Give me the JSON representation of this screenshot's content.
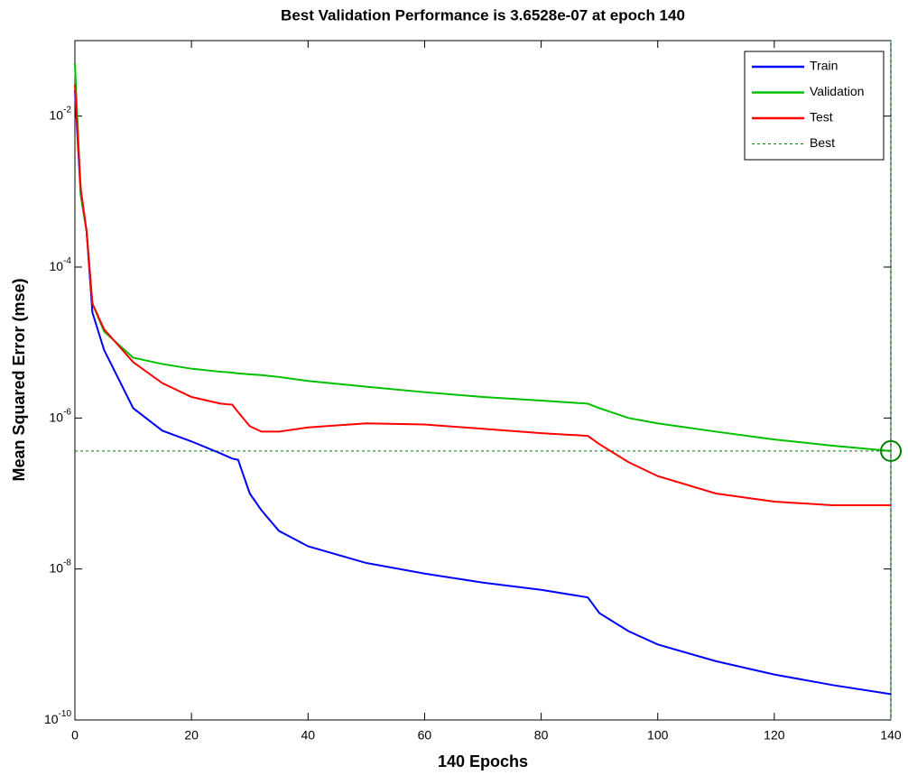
{
  "chart_data": {
    "type": "line",
    "title": "Best Validation Performance is 3.6528e-07 at epoch 140",
    "x_label": "140 Epochs",
    "y_label": "Mean Squared Error  (mse)",
    "log_y": true,
    "grid": false,
    "legend": "top-right",
    "xlim": [
      0,
      140
    ],
    "xticks": [
      0,
      20,
      40,
      60,
      80,
      100,
      120,
      140
    ],
    "ylim": [
      1e-10,
      0.1
    ],
    "yticks": [
      {
        "value": 1e-10,
        "label": "10",
        "exponent": "-10"
      },
      {
        "value": 1e-08,
        "label": "10",
        "exponent": "-8"
      },
      {
        "value": 1e-06,
        "label": "10",
        "exponent": "-6"
      },
      {
        "value": 0.0001,
        "label": "10",
        "exponent": "-4"
      },
      {
        "value": 0.01,
        "label": "10",
        "exponent": "-2"
      }
    ],
    "x": [
      0,
      1,
      2,
      3,
      5,
      10,
      15,
      20,
      25,
      27,
      28,
      30,
      32,
      35,
      40,
      50,
      60,
      70,
      80,
      88,
      90,
      95,
      100,
      110,
      120,
      130,
      140
    ],
    "series": [
      {
        "name": "Train",
        "color": "#0000ff",
        "values": [
          0.022,
          0.0009,
          0.0003,
          2.5e-05,
          8e-06,
          1.35e-06,
          6.8e-07,
          4.9e-07,
          3.4e-07,
          2.9e-07,
          2.8e-07,
          1e-07,
          6e-08,
          3.2e-08,
          2e-08,
          1.2e-08,
          8.7e-09,
          6.6e-09,
          5.3e-09,
          4.2e-09,
          2.6e-09,
          1.5e-09,
          1e-09,
          6e-10,
          4e-10,
          2.9e-10,
          2.2e-10
        ]
      },
      {
        "name": "Validation",
        "color": "#00c000",
        "values": [
          0.05,
          0.0009,
          0.0003,
          3.3e-05,
          1.4e-05,
          6.3e-06,
          5.2e-06,
          4.5e-06,
          4.1e-06,
          4e-06,
          3.9e-06,
          3.8e-06,
          3.7e-06,
          3.5e-06,
          3.1e-06,
          2.6e-06,
          2.2e-06,
          1.9e-06,
          1.7e-06,
          1.55e-06,
          1.35e-06,
          1e-06,
          8.5e-07,
          6.6e-07,
          5.2e-07,
          4.3e-07,
          3.6528e-07
        ]
      },
      {
        "name": "Test",
        "color": "#ff0000",
        "values": [
          0.026,
          0.0011,
          0.0003,
          3.3e-05,
          1.5e-05,
          5.5e-06,
          2.9e-06,
          1.9e-06,
          1.55e-06,
          1.5e-06,
          1.2e-06,
          7.8e-07,
          6.6e-07,
          6.6e-07,
          7.5e-07,
          8.5e-07,
          8.2e-07,
          7.2e-07,
          6.3e-07,
          5.8e-07,
          4.5e-07,
          2.6e-07,
          1.7e-07,
          1e-07,
          7.8e-08,
          7e-08,
          7e-08
        ]
      }
    ],
    "best": {
      "name": "Best",
      "color": "#008000",
      "x": 140,
      "y": 3.6528e-07
    }
  }
}
